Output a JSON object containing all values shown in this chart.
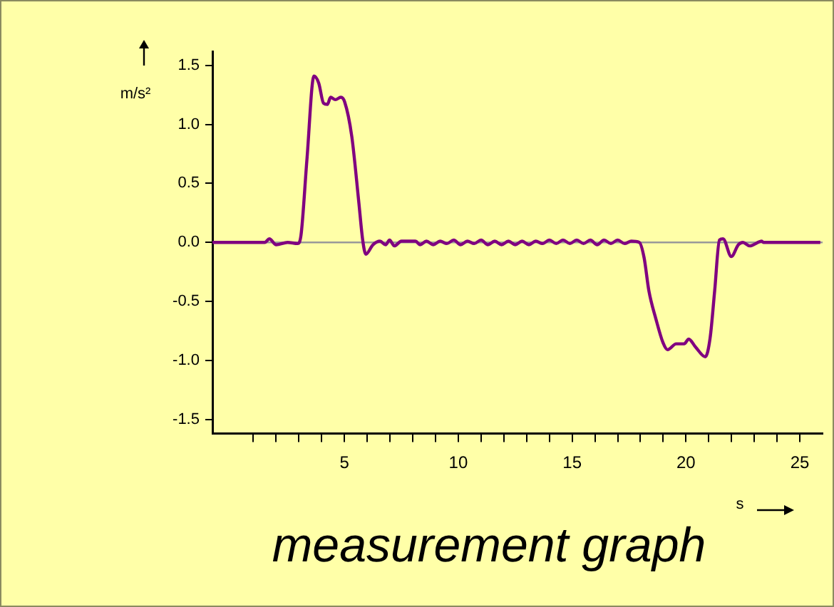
{
  "chart_data": {
    "type": "line",
    "title": "measurement graph",
    "xlabel": "s",
    "ylabel": "m/s²",
    "x": [
      -0.8,
      1.5,
      1.7,
      2.0,
      2.5,
      2.94,
      3.09,
      3.35,
      3.66,
      3.87,
      4.08,
      4.25,
      4.39,
      4.6,
      4.84,
      5.01,
      5.32,
      5.63,
      5.8,
      5.94,
      6.25,
      6.56,
      6.81,
      6.98,
      7.19,
      7.5,
      8.12,
      8.32,
      8.6,
      8.9,
      9.2,
      9.5,
      9.8,
      10.1,
      10.4,
      10.7,
      11.0,
      11.3,
      11.6,
      11.9,
      12.2,
      12.5,
      12.8,
      13.1,
      13.4,
      13.7,
      14.0,
      14.3,
      14.6,
      14.9,
      15.2,
      15.5,
      15.8,
      16.1,
      16.4,
      16.7,
      17.0,
      17.3,
      17.6,
      17.95,
      18.16,
      18.37,
      18.68,
      18.99,
      19.19,
      19.57,
      19.92,
      20.12,
      20.43,
      20.85,
      21.06,
      21.26,
      21.47,
      21.63,
      21.99,
      22.3,
      22.5,
      22.8,
      23.33,
      23.4,
      25.9
    ],
    "series": [
      {
        "color": "#800080",
        "values": [
          0,
          0,
          0.03,
          -0.02,
          0,
          -0.01,
          0.06,
          0.7,
          1.41,
          1.35,
          1.18,
          1.17,
          1.23,
          1.21,
          1.23,
          1.19,
          0.9,
          0.34,
          0.02,
          -0.1,
          -0.02,
          0.01,
          -0.02,
          0.02,
          -0.03,
          0.01,
          0.01,
          -0.02,
          0.01,
          -0.02,
          0.01,
          -0.01,
          0.02,
          -0.02,
          0.01,
          -0.01,
          0.02,
          -0.02,
          0.01,
          -0.02,
          0.01,
          -0.02,
          0.01,
          -0.02,
          0.01,
          -0.01,
          0.02,
          -0.01,
          0.02,
          -0.01,
          0.02,
          -0.01,
          0.02,
          -0.02,
          0.02,
          -0.01,
          0.02,
          -0.01,
          0.01,
          0,
          -0.13,
          -0.41,
          -0.65,
          -0.85,
          -0.91,
          -0.86,
          -0.86,
          -0.82,
          -0.89,
          -0.97,
          -0.81,
          -0.41,
          0.02,
          0.03,
          -0.12,
          -0.02,
          0,
          -0.03,
          0.01,
          0,
          0
        ]
      }
    ],
    "xlim": [
      -0.8,
      26
    ],
    "ylim": [
      -1.62,
      1.62
    ],
    "xticks": [
      {
        "value": 1,
        "label": null
      },
      {
        "value": 2,
        "label": null
      },
      {
        "value": 3,
        "label": null
      },
      {
        "value": 4,
        "label": null
      },
      5,
      {
        "value": 6,
        "label": null
      },
      {
        "value": 7,
        "label": null
      },
      {
        "value": 8,
        "label": null
      },
      {
        "value": 9,
        "label": null
      },
      10,
      {
        "value": 11,
        "label": null
      },
      {
        "value": 12,
        "label": null
      },
      {
        "value": 13,
        "label": null
      },
      {
        "value": 14,
        "label": null
      },
      15,
      {
        "value": 16,
        "label": null
      },
      {
        "value": 17,
        "label": null
      },
      {
        "value": 18,
        "label": null
      },
      {
        "value": 19,
        "label": null
      },
      20,
      {
        "value": 21,
        "label": null
      },
      {
        "value": 22,
        "label": null
      },
      {
        "value": 23,
        "label": null
      },
      {
        "value": 24,
        "label": null
      },
      25
    ],
    "yticks": [
      -1.5,
      {
        "value": -1,
        "label": "-1.0"
      },
      -0.5,
      {
        "value": 0,
        "label": "0.0"
      },
      0.5,
      {
        "value": 1,
        "label": "1.0"
      },
      1.5
    ],
    "ref_lines": [
      {
        "axis": "y",
        "value": 0,
        "color": "#999999"
      }
    ],
    "grid": false,
    "legend": false,
    "marker": "none",
    "line_style": "solid"
  }
}
